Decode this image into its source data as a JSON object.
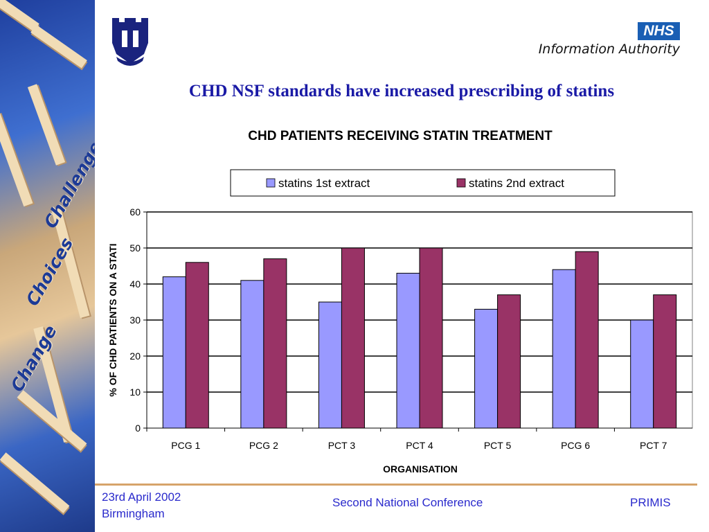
{
  "side_strip": {
    "words": [
      "Challenge",
      "Choices",
      "Change"
    ]
  },
  "header": {
    "org_badge": "NHS",
    "org_name": "Information Authority"
  },
  "slide_title": "CHD NSF standards have increased prescribing of statins",
  "chart_data": {
    "type": "bar",
    "title": "CHD PATIENTS RECEIVING STATIN TREATMENT",
    "xlabel": "ORGANISATION",
    "ylabel": "% OF CHD PATIENTS ON A STATI",
    "categories": [
      "PCG 1",
      "PCG 2",
      "PCT 3",
      "PCT 4",
      "PCT 5",
      "PCG 6",
      "PCT 7"
    ],
    "series": [
      {
        "name": "statins 1st extract",
        "values": [
          42,
          41,
          35,
          43,
          33,
          44,
          30
        ],
        "color": "#9999ff"
      },
      {
        "name": "statins 2nd extract",
        "values": [
          46,
          47,
          50,
          50,
          37,
          49,
          37
        ],
        "color": "#993366"
      }
    ],
    "ylim": [
      0,
      60
    ],
    "yticks": [
      0,
      10,
      20,
      30,
      40,
      50,
      60
    ],
    "grid": true,
    "legend_position": "top"
  },
  "footer": {
    "date": "23rd April 2002",
    "location": "Birmingham",
    "event": "Second National Conference",
    "brand": "PRIMIS"
  }
}
